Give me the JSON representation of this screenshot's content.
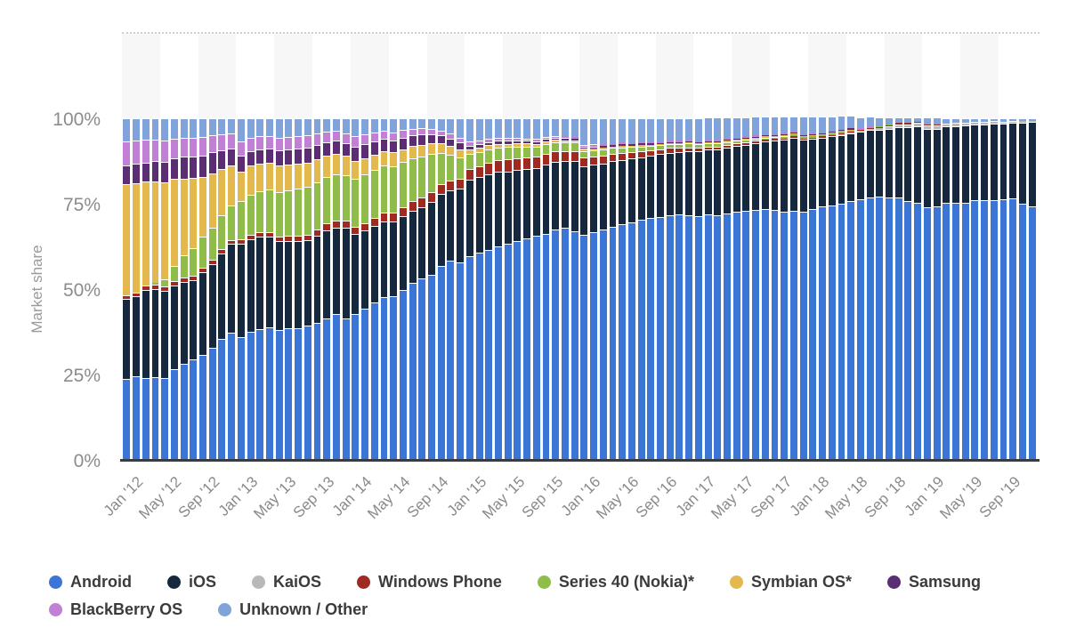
{
  "page": {
    "background": "#ffffff"
  },
  "chart_data": {
    "type": "bar",
    "stacked": true,
    "percent": true,
    "title": "",
    "ylabel": "Market share",
    "ylim": [
      0,
      100
    ],
    "y_ticks": [
      "100%",
      "75%",
      "50%",
      "25%",
      "0%"
    ],
    "grid": "top-dotted-line-only",
    "legend_position": "bottom",
    "x_tick_every": 4,
    "band_color": "#f7f7f7",
    "baseline_color": "#383d42",
    "dotted_line_color": "#cfcfcf",
    "tick_text_color": "#8c8c8c",
    "legend_text_color": "#3b3b3b",
    "months": [
      "Jan '12",
      "Feb '12",
      "Mar '12",
      "Apr '12",
      "May '12",
      "Jun '12",
      "Jul '12",
      "Aug '12",
      "Sep '12",
      "Oct '12",
      "Nov '12",
      "Dec '12",
      "Jan '13",
      "Feb '13",
      "Mar '13",
      "Apr '13",
      "May '13",
      "Jun '13",
      "Jul '13",
      "Aug '13",
      "Sep '13",
      "Oct '13",
      "Nov '13",
      "Dec '13",
      "Jan '14",
      "Feb '14",
      "Mar '14",
      "Apr '14",
      "May '14",
      "Jun '14",
      "Jul '14",
      "Aug '14",
      "Sep '14",
      "Oct '14",
      "Nov '14",
      "Dec '14",
      "Jan '15",
      "Feb '15",
      "Mar '15",
      "Apr '15",
      "May '15",
      "Jun '15",
      "Jul '15",
      "Aug '15",
      "Sep '15",
      "Oct '15",
      "Nov '15",
      "Dec '15",
      "Jan '16",
      "Feb '16",
      "Mar '16",
      "Apr '16",
      "May '16",
      "Jun '16",
      "Jul '16",
      "Aug '16",
      "Sep '16",
      "Oct '16",
      "Nov '16",
      "Dec '16",
      "Jan '17",
      "Feb '17",
      "Mar '17",
      "Apr '17",
      "May '17",
      "Jun '17",
      "Jul '17",
      "Aug '17",
      "Sep '17",
      "Oct '17",
      "Nov '17",
      "Dec '17",
      "Jan '18",
      "Feb '18",
      "Mar '18",
      "Apr '18",
      "May '18",
      "Jun '18",
      "Jul '18",
      "Aug '18",
      "Sep '18",
      "Oct '18",
      "Nov '18",
      "Dec '18",
      "Jan '19",
      "Feb '19",
      "Mar '19",
      "Apr '19",
      "May '19",
      "Jun '19",
      "Jul '19",
      "Aug '19",
      "Sep '19",
      "Oct '19",
      "Nov '19",
      "Dec '19"
    ],
    "series": [
      {
        "name": "Android",
        "color": "#3b76d6",
        "legend_row": 1,
        "values": [
          23.7,
          24.5,
          24.0,
          24.2,
          24.0,
          26.5,
          28.2,
          29.4,
          30.8,
          32.9,
          35.4,
          37.2,
          36.0,
          37.5,
          38.3,
          38.8,
          38.0,
          38.5,
          38.6,
          39.2,
          40.0,
          41.5,
          42.6,
          41.5,
          42.7,
          44.3,
          46.0,
          47.6,
          47.8,
          49.7,
          51.7,
          53.2,
          54.3,
          56.8,
          58.3,
          57.7,
          59.6,
          60.8,
          61.5,
          62.5,
          63.2,
          64.0,
          64.8,
          65.5,
          66.2,
          67.4,
          68.0,
          66.9,
          66.0,
          66.7,
          67.4,
          68.2,
          68.9,
          69.5,
          70.2,
          70.8,
          71.2,
          71.7,
          71.9,
          71.6,
          71.3,
          71.8,
          71.6,
          72.2,
          72.6,
          72.9,
          73.2,
          73.5,
          73.3,
          72.6,
          72.9,
          72.7,
          73.5,
          74.2,
          74.4,
          75.0,
          75.9,
          76.2,
          76.8,
          77.1,
          76.9,
          76.7,
          75.9,
          75.2,
          74.0,
          74.2,
          75.2,
          75.3,
          75.3,
          76.0,
          76.1,
          76.1,
          76.2,
          76.6,
          75.0,
          74.1
        ]
      },
      {
        "name": "iOS",
        "color": "#16283e",
        "legend_row": 1,
        "values": [
          23.4,
          23.3,
          25.8,
          25.8,
          25.6,
          24.6,
          23.9,
          23.2,
          24.2,
          24.4,
          25.0,
          26.0,
          27.3,
          27.2,
          27.0,
          26.6,
          26.0,
          25.6,
          25.4,
          25.0,
          25.6,
          25.8,
          25.5,
          26.5,
          23.4,
          22.8,
          22.5,
          22.3,
          22.0,
          21.6,
          21.2,
          20.8,
          21.3,
          21.0,
          20.5,
          21.7,
          22.4,
          22.0,
          22.2,
          21.8,
          21.3,
          20.8,
          20.3,
          19.8,
          20.2,
          19.8,
          19.4,
          20.6,
          20.0,
          19.7,
          19.4,
          19.2,
          18.9,
          18.7,
          18.4,
          18.2,
          18.3,
          18.2,
          18.2,
          18.7,
          19.1,
          19.0,
          19.3,
          19.2,
          19.3,
          19.4,
          19.6,
          19.7,
          20.1,
          21.1,
          21.5,
          21.0,
          20.5,
          20.2,
          20.5,
          20.2,
          19.8,
          19.9,
          19.7,
          19.6,
          20.0,
          20.8,
          21.5,
          22.5,
          22.9,
          22.8,
          22.4,
          22.4,
          22.5,
          22.1,
          22.1,
          22.3,
          22.2,
          22.0,
          23.6,
          24.8
        ]
      },
      {
        "name": "KaiOS",
        "color": "#b9b9b9",
        "legend_row": 1,
        "values": [
          0,
          0,
          0,
          0,
          0,
          0,
          0,
          0,
          0,
          0,
          0,
          0,
          0,
          0,
          0,
          0,
          0,
          0,
          0,
          0,
          0,
          0,
          0,
          0,
          0,
          0,
          0,
          0,
          0,
          0,
          0,
          0,
          0,
          0,
          0,
          0,
          0,
          0,
          0,
          0,
          0,
          0,
          0,
          0,
          0,
          0,
          0,
          0,
          0,
          0,
          0,
          0,
          0,
          0,
          0,
          0,
          0,
          0,
          0,
          0,
          0,
          0,
          0,
          0,
          0,
          0,
          0,
          0,
          0,
          0,
          0,
          0,
          0,
          0,
          0,
          0.1,
          0.2,
          0.3,
          0.4,
          0.5,
          0.7,
          0.8,
          0.9,
          1.0,
          1.0,
          1.0,
          0.9,
          0.9,
          0.8,
          0.8,
          0.7,
          0.7,
          0.6,
          0.6,
          0.5,
          0.4
        ]
      },
      {
        "name": "Windows Phone",
        "color": "#9e2a21",
        "legend_row": 1,
        "values": [
          1.2,
          1.2,
          1.2,
          1.3,
          1.3,
          1.3,
          1.3,
          1.3,
          1.3,
          1.2,
          1.2,
          1.2,
          1.3,
          1.3,
          1.3,
          1.4,
          1.5,
          1.5,
          1.6,
          1.7,
          1.8,
          1.9,
          2.0,
          2.0,
          2.2,
          2.3,
          2.4,
          2.5,
          2.6,
          2.7,
          2.8,
          2.9,
          2.9,
          3.0,
          3.0,
          3.0,
          3.1,
          3.2,
          3.3,
          3.4,
          3.5,
          3.5,
          3.5,
          3.4,
          3.3,
          3.2,
          3.1,
          3.0,
          2.5,
          2.4,
          2.3,
          2.2,
          2.1,
          1.9,
          1.8,
          1.6,
          1.5,
          1.4,
          1.3,
          1.2,
          1.0,
          0.9,
          0.8,
          0.8,
          0.7,
          0.6,
          0.6,
          0.5,
          0.5,
          0.4,
          0.4,
          0.3,
          0.3,
          0.3,
          0.2,
          0.2,
          0.2,
          0.2,
          0.1,
          0.1,
          0.1,
          0.1,
          0.1,
          0.1,
          0.1,
          0.1,
          0,
          0,
          0,
          0,
          0,
          0,
          0,
          0,
          0,
          0
        ]
      },
      {
        "name": "Series 40 (Nokia)*",
        "color": "#90bc4a",
        "legend_row": 1,
        "values": [
          0,
          0,
          0,
          0.5,
          2.0,
          4.5,
          6.5,
          8.2,
          9.0,
          9.6,
          10.0,
          10.2,
          11.3,
          11.7,
          12.0,
          12.4,
          13.0,
          13.4,
          13.8,
          14.0,
          13.8,
          13.5,
          13.5,
          13.3,
          14.0,
          14.2,
          14.0,
          13.8,
          13.6,
          13.2,
          12.6,
          12.0,
          11.0,
          9.0,
          7.5,
          6.2,
          4.4,
          4.2,
          4.0,
          3.8,
          3.6,
          3.4,
          3.2,
          3.0,
          2.8,
          2.6,
          2.5,
          2.4,
          2.0,
          1.9,
          1.8,
          1.7,
          1.6,
          1.5,
          1.4,
          1.3,
          1.2,
          1.2,
          1.1,
          1.1,
          1.0,
          1.0,
          0.9,
          0.9,
          0.8,
          0.8,
          0.7,
          0.7,
          0.6,
          0.6,
          0.5,
          0.5,
          0.4,
          0.4,
          0.3,
          0.3,
          0.2,
          0.2,
          0.2,
          0.1,
          0.1,
          0.1,
          0.1,
          0,
          0,
          0,
          0,
          0,
          0,
          0,
          0,
          0,
          0,
          0,
          0,
          0
        ]
      },
      {
        "name": "Symbian OS*",
        "color": "#e3b94d",
        "legend_row": 1,
        "values": [
          32.5,
          32.0,
          30.5,
          29.8,
          28.3,
          25.3,
          22.5,
          20.4,
          17.6,
          15.8,
          13.5,
          11.6,
          8.6,
          8.4,
          8.0,
          7.7,
          7.7,
          7.5,
          7.4,
          7.2,
          6.8,
          6.3,
          6.0,
          5.8,
          5.2,
          4.8,
          4.5,
          4.2,
          4.0,
          3.8,
          3.6,
          3.4,
          3.1,
          2.8,
          2.6,
          2.4,
          1.3,
          1.2,
          1.1,
          1.0,
          0.9,
          0.9,
          0.8,
          0.8,
          0.7,
          0.7,
          0.6,
          0.6,
          0.6,
          0.5,
          0.5,
          0.5,
          0.4,
          0.4,
          0.4,
          0.3,
          0.3,
          0.3,
          0.3,
          0.3,
          0.2,
          0.2,
          0.2,
          0.2,
          0.2,
          0.1,
          0.1,
          0.1,
          0.1,
          0.1,
          0.1,
          0.1,
          0.1,
          0.1,
          0.1,
          0.1,
          0.1,
          0,
          0,
          0,
          0,
          0,
          0,
          0,
          0,
          0,
          0,
          0,
          0,
          0,
          0,
          0,
          0,
          0,
          0,
          0
        ]
      },
      {
        "name": "Samsung",
        "color": "#5b2d73",
        "legend_row": 1,
        "values": [
          5.5,
          5.6,
          5.6,
          5.8,
          6.0,
          6.1,
          6.3,
          6.4,
          6.3,
          6.1,
          5.6,
          5.0,
          4.5,
          4.4,
          4.3,
          4.3,
          4.4,
          4.4,
          4.4,
          4.4,
          4.2,
          4.0,
          3.8,
          3.7,
          4.3,
          4.0,
          3.8,
          3.6,
          3.5,
          3.3,
          3.1,
          2.9,
          2.7,
          2.4,
          2.2,
          2.1,
          1.2,
          1.1,
          1.0,
          0.9,
          0.9,
          0.8,
          0.8,
          0.7,
          0.7,
          0.6,
          0.6,
          0.5,
          0.6,
          0.6,
          0.5,
          0.5,
          0.5,
          0.4,
          0.4,
          0.4,
          0.3,
          0.3,
          0.3,
          0.3,
          0.3,
          0.2,
          0.2,
          0.2,
          0.2,
          0.2,
          0.1,
          0.1,
          0.1,
          0.1,
          0.1,
          0.1,
          0.1,
          0.1,
          0.1,
          0.1,
          0.1,
          0,
          0,
          0,
          0,
          0,
          0,
          0,
          0,
          0,
          0,
          0,
          0,
          0,
          0,
          0,
          0,
          0,
          0,
          0
        ]
      },
      {
        "name": "BlackBerry OS",
        "color": "#c17fd5",
        "legend_row": 2,
        "values": [
          7.0,
          6.9,
          6.6,
          6.4,
          6.3,
          5.8,
          5.6,
          5.5,
          5.3,
          5.0,
          4.6,
          4.3,
          4.2,
          3.9,
          3.8,
          3.7,
          3.8,
          3.7,
          3.6,
          3.5,
          3.3,
          3.1,
          2.9,
          2.8,
          3.0,
          2.8,
          2.6,
          2.4,
          2.3,
          2.2,
          2.0,
          1.9,
          1.7,
          1.5,
          1.4,
          1.3,
          1.2,
          1.1,
          1.0,
          0.9,
          0.8,
          0.8,
          0.7,
          0.7,
          0.6,
          0.6,
          0.5,
          0.5,
          0.6,
          0.6,
          0.5,
          0.5,
          0.5,
          0.4,
          0.4,
          0.4,
          0.3,
          0.3,
          0.3,
          0.3,
          0.3,
          0.3,
          0.2,
          0.2,
          0.2,
          0.2,
          0.2,
          0.1,
          0.1,
          0.1,
          0.1,
          0.1,
          0.1,
          0.1,
          0.1,
          0.1,
          0.1,
          0.1,
          0.1,
          0,
          0,
          0,
          0,
          0,
          0,
          0,
          0,
          0,
          0,
          0,
          0,
          0,
          0,
          0,
          0,
          0
        ]
      },
      {
        "name": "Unknown / Other",
        "color": "#7fa3da",
        "legend_row": 2,
        "values": [
          6.7,
          6.5,
          6.3,
          6.2,
          6.5,
          5.9,
          5.7,
          5.6,
          5.5,
          5.0,
          4.7,
          4.5,
          6.8,
          5.6,
          5.3,
          5.1,
          5.6,
          5.4,
          5.2,
          5.0,
          4.5,
          3.9,
          3.7,
          4.4,
          5.2,
          4.8,
          4.2,
          3.6,
          4.2,
          3.5,
          3.0,
          2.9,
          3.0,
          3.5,
          4.5,
          5.6,
          6.8,
          6.4,
          5.9,
          5.7,
          5.8,
          5.8,
          5.9,
          6.1,
          5.5,
          5.1,
          5.3,
          5.5,
          7.7,
          7.6,
          7.6,
          7.2,
          7.1,
          7.2,
          7.0,
          7.0,
          6.9,
          6.6,
          6.6,
          6.5,
          6.8,
          6.6,
          6.8,
          6.3,
          6.0,
          5.8,
          5.5,
          5.3,
          5.2,
          5.0,
          4.4,
          5.2,
          5.0,
          4.6,
          4.3,
          4.0,
          3.5,
          3.1,
          2.7,
          2.6,
          2.2,
          1.5,
          1.5,
          1.2,
          2.0,
          1.9,
          1.5,
          1.4,
          1.4,
          1.1,
          1.1,
          0.9,
          1.0,
          0.8,
          0.9,
          0.7
        ]
      }
    ]
  }
}
